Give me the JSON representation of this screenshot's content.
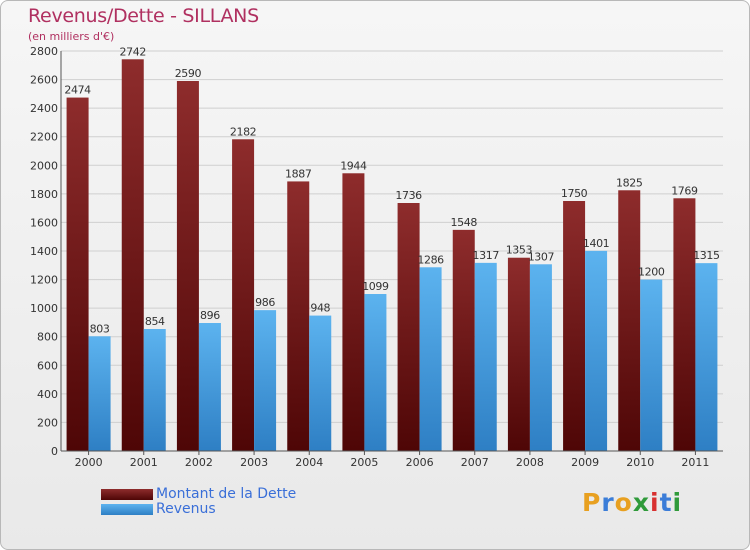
{
  "header": {
    "title": "Revenus/Dette - SILLANS",
    "subtitle": "(en milliers d'€)"
  },
  "chart_data": {
    "type": "bar",
    "title": "Revenus/Dette - SILLANS",
    "ylabel": "(en milliers d'€)",
    "xlabel": "",
    "ylim": [
      0,
      2800
    ],
    "yticks": [
      0,
      200,
      400,
      600,
      800,
      1000,
      1200,
      1400,
      1600,
      1800,
      2000,
      2200,
      2400,
      2600,
      2800
    ],
    "grid": true,
    "categories": [
      "2000",
      "2001",
      "2002",
      "2003",
      "2004",
      "2005",
      "2006",
      "2007",
      "2008",
      "2009",
      "2010",
      "2011"
    ],
    "series": [
      {
        "name": "Montant de la Dette",
        "color": "#7a1a1a",
        "values": [
          2474,
          2742,
          2590,
          2182,
          1887,
          1944,
          1736,
          1548,
          1353,
          1750,
          1825,
          1769
        ]
      },
      {
        "name": "Revenus",
        "color": "#4fa3e3",
        "values": [
          803,
          854,
          896,
          986,
          948,
          1099,
          1286,
          1317,
          1307,
          1401,
          1200,
          1315
        ]
      }
    ],
    "legend_position": "bottom-left"
  },
  "legend": {
    "items": [
      {
        "label": "Montant de la Dette",
        "color": "#7a1a1a"
      },
      {
        "label": "Revenus",
        "color": "#4fa3e3"
      }
    ]
  },
  "logo": {
    "letters": [
      "P",
      "r",
      "o",
      "x",
      "i",
      "t",
      "i"
    ],
    "colors": [
      "#e8a020",
      "#3b7dd8",
      "#e8a020",
      "#2f9a3a",
      "#d83030",
      "#3b7dd8",
      "#2f9a3a"
    ]
  }
}
